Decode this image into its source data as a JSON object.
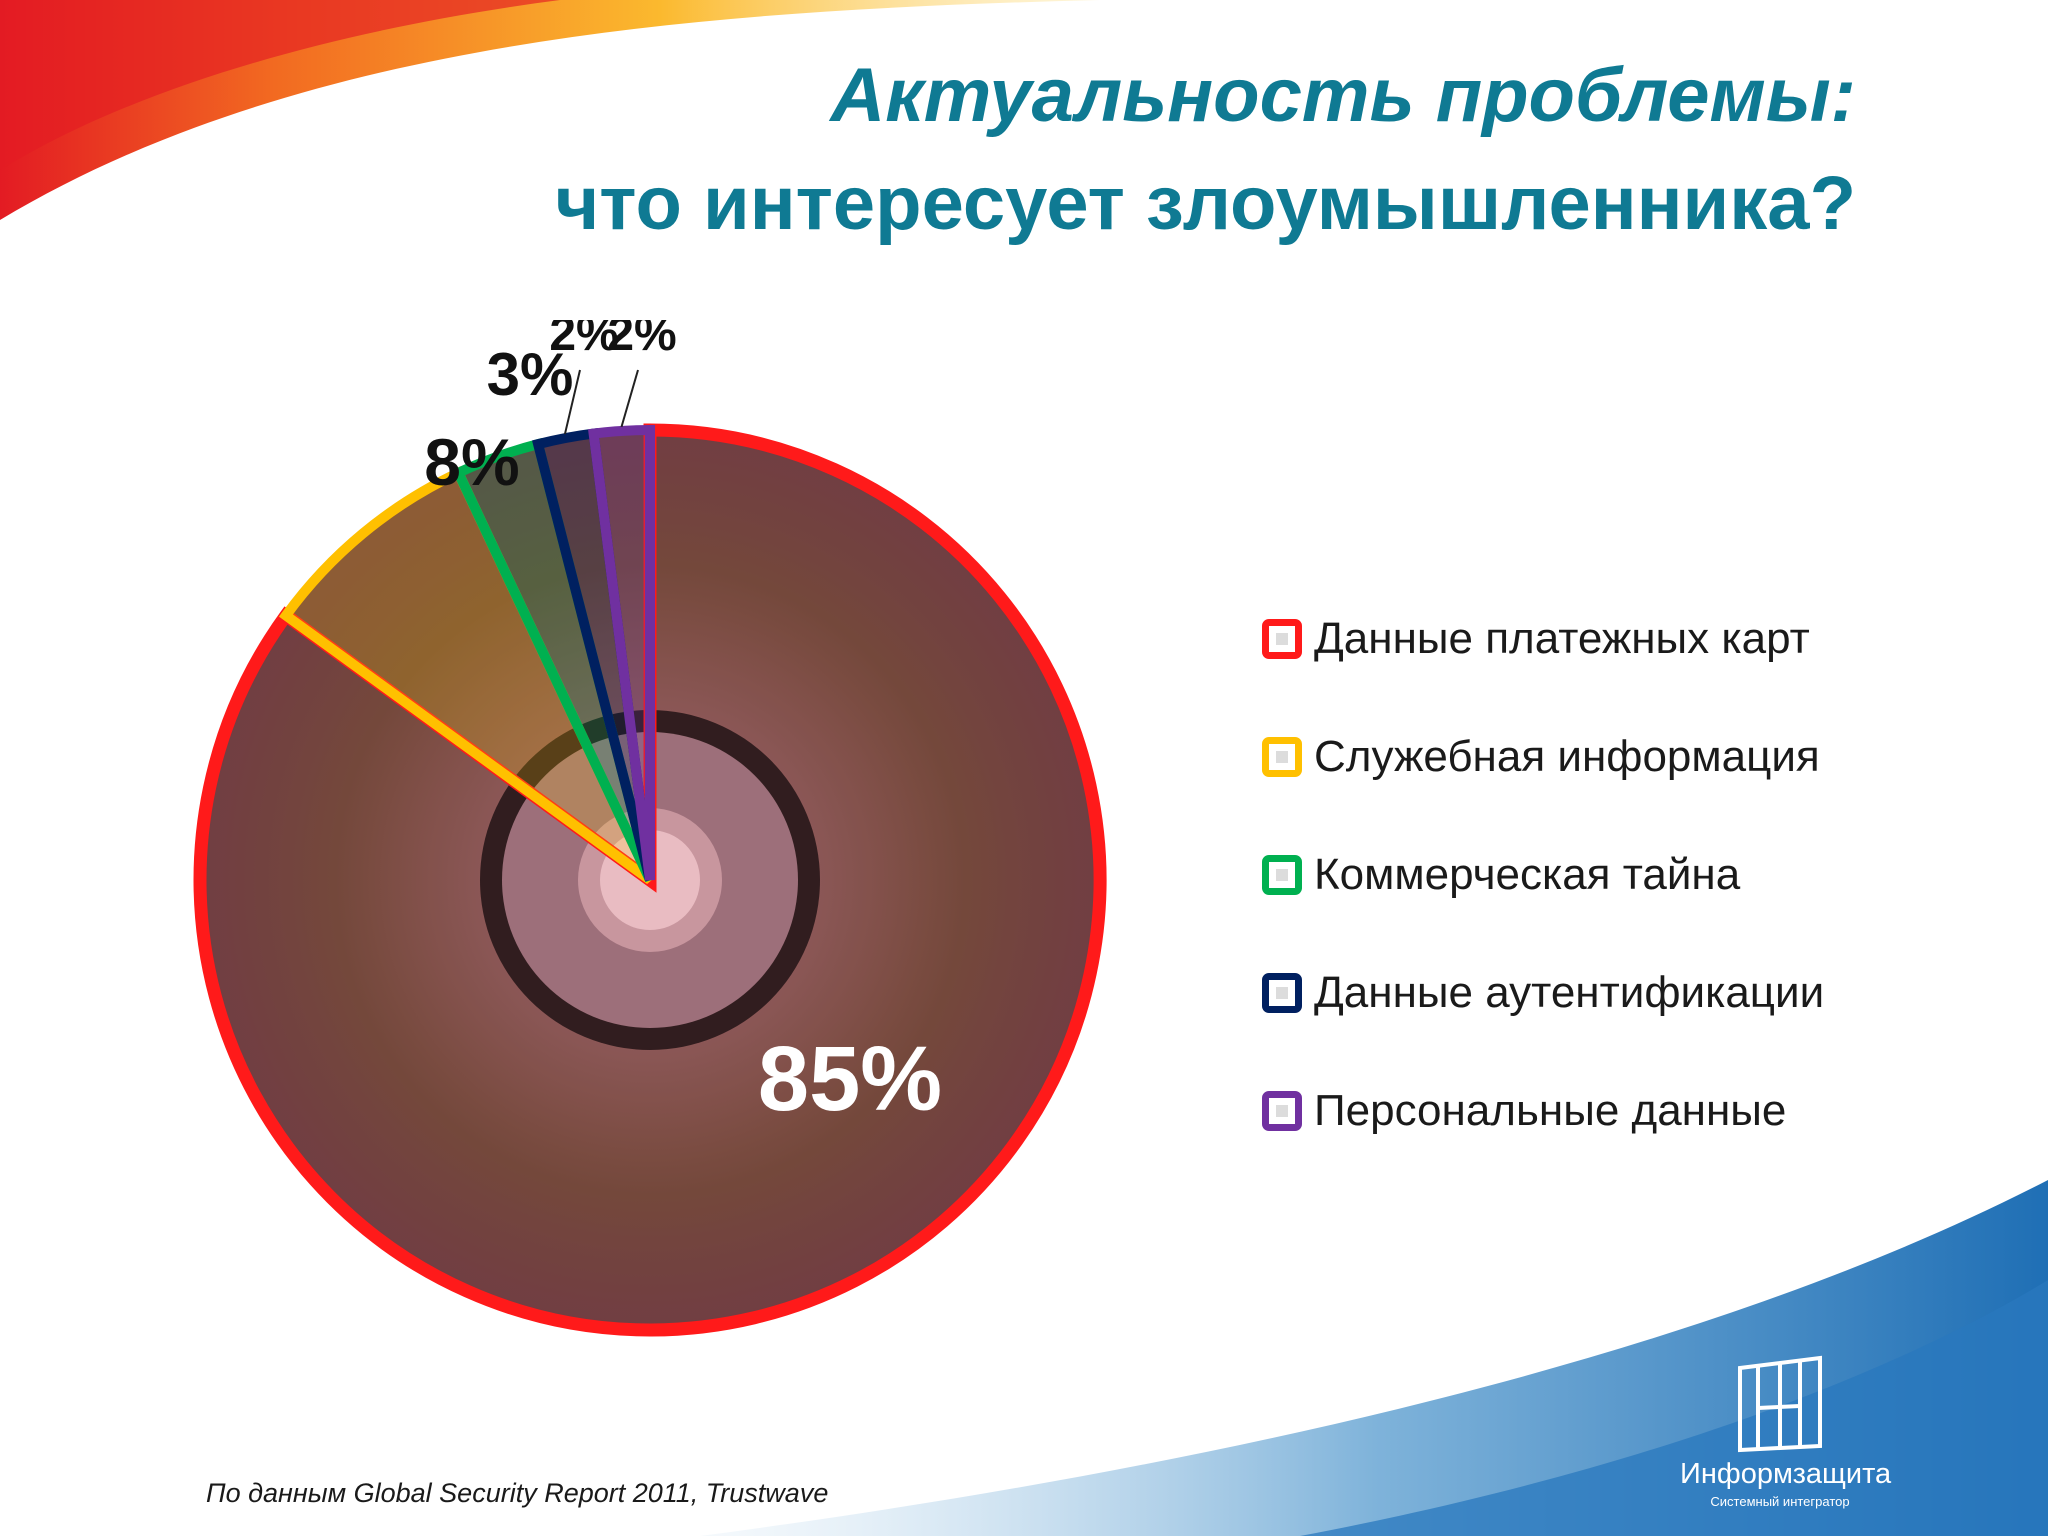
{
  "header": {
    "title_line1": "Актуальность проблемы:",
    "title_line2": "что интересует злоумышленника?"
  },
  "footer": {
    "source": "По данным Global Security Report 2011, Trustwave",
    "logo_name": "Информзащита",
    "logo_tagline": "Системный интегратор"
  },
  "chart_data": {
    "type": "pie",
    "title": "",
    "categories": [
      "Данные платежных карт",
      "Служебная информация",
      "Коммерческая тайна",
      "Данные аутентификации",
      "Персональные данные"
    ],
    "values": [
      85,
      8,
      3,
      2,
      2
    ],
    "labels": [
      "85%",
      "8%",
      "3%",
      "2%",
      "2%"
    ],
    "colors": [
      "#ff1a1a",
      "#ffc000",
      "#00b050",
      "#002060",
      "#7030a0"
    ],
    "legend_position": "right",
    "unit": "%"
  }
}
